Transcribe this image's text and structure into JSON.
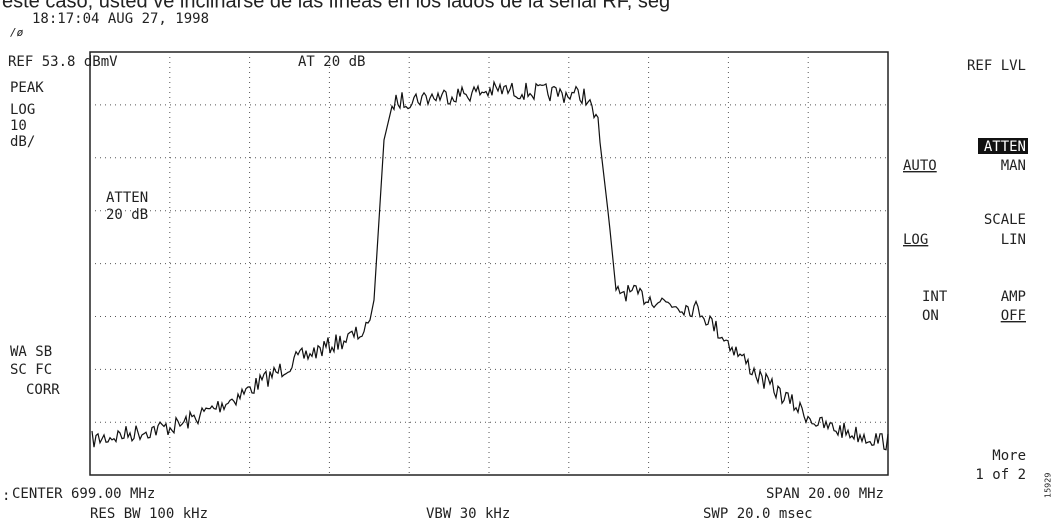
{
  "caption": "este caso, usted ve inclinarse de las líneas en los lados de la señal RF, seg",
  "header": {
    "timestamp": "18:17:04 AUG 27, 1998",
    "ref": "REF 53.8 dBmV",
    "atten": "AT 20 dB"
  },
  "left": {
    "mode": "PEAK",
    "scale": "LOG",
    "div": "10",
    "unit": "dB/",
    "status1": "WA SB",
    "status2": "SC FC",
    "status3": "CORR"
  },
  "screen": {
    "atten_label": "ATTEN",
    "atten_value": "20 dB"
  },
  "softkeys": {
    "ref_lvl": "REF LVL",
    "atten": "ATTEN",
    "auto": "AUTO",
    "man": "MAN",
    "scale": "SCALE",
    "log": "LOG",
    "lin": "LIN",
    "int": "INT",
    "amp": "AMP",
    "on": "ON",
    "off": "OFF",
    "more": "More",
    "page": "1 of 2"
  },
  "footer": {
    "center": "CENTER 699.00 MHz",
    "span": "SPAN 20.00 MHz",
    "res_bw": "RES BW 100 kHz",
    "vbw": "VBW 30 kHz",
    "swp": "SWP 20.0 msec",
    "colon": ":",
    "figure_id": "15929"
  }
}
